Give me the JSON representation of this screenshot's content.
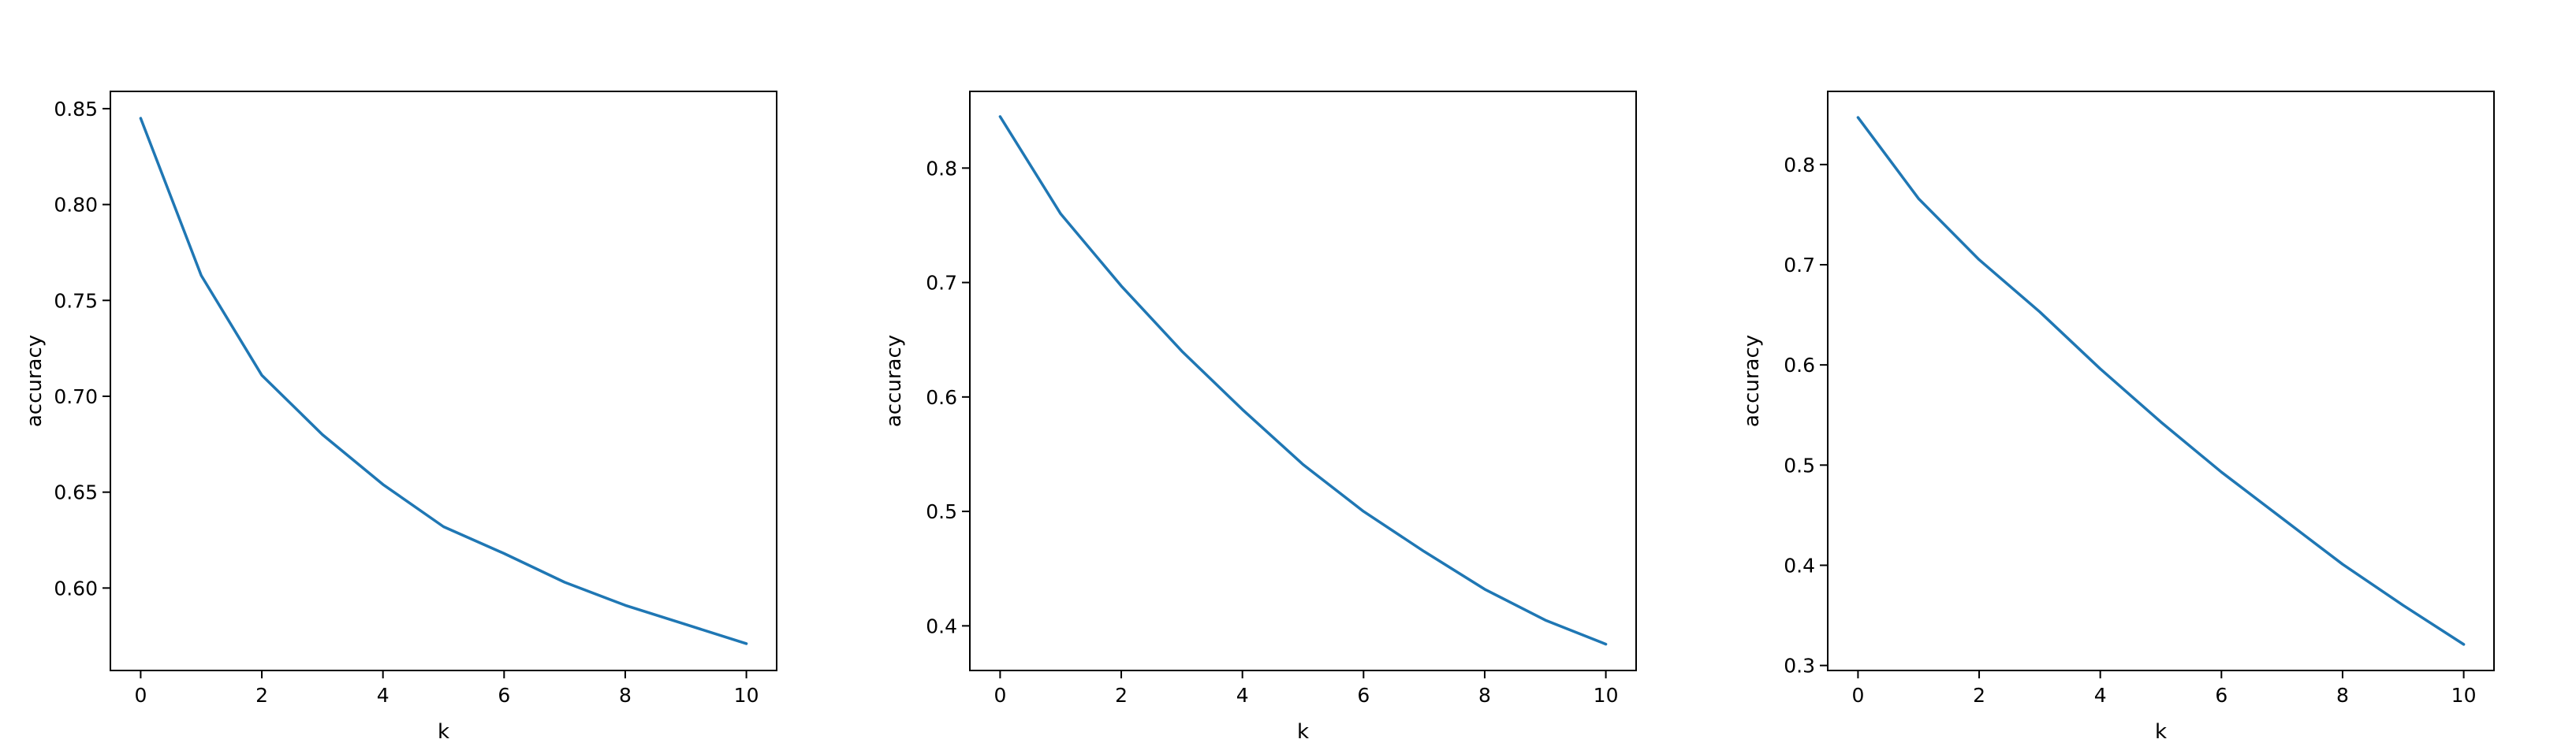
{
  "chart_data": [
    {
      "type": "line",
      "xlabel": "k",
      "ylabel": "accuracy",
      "xlim": [
        -0.5,
        10.5
      ],
      "ylim": [
        0.557,
        0.859
      ],
      "xticks": [
        0,
        2,
        4,
        6,
        8,
        10
      ],
      "xtick_labels": [
        "0",
        "2",
        "4",
        "6",
        "8",
        "10"
      ],
      "yticks": [
        0.6,
        0.65,
        0.7,
        0.75,
        0.8,
        0.85
      ],
      "ytick_labels": [
        "0.60",
        "0.65",
        "0.70",
        "0.75",
        "0.80",
        "0.85"
      ],
      "grid": false,
      "color": "#1f77b4",
      "x": [
        0,
        1,
        2,
        3,
        4,
        5,
        6,
        7,
        8,
        9,
        10
      ],
      "y": [
        0.845,
        0.763,
        0.711,
        0.68,
        0.654,
        0.632,
        0.618,
        0.603,
        0.591,
        0.581,
        0.571
      ]
    },
    {
      "type": "line",
      "xlabel": "k",
      "ylabel": "accuracy",
      "xlim": [
        -0.5,
        10.5
      ],
      "ylim": [
        0.361,
        0.867
      ],
      "xticks": [
        0,
        2,
        4,
        6,
        8,
        10
      ],
      "xtick_labels": [
        "0",
        "2",
        "4",
        "6",
        "8",
        "10"
      ],
      "yticks": [
        0.4,
        0.5,
        0.6,
        0.7,
        0.8
      ],
      "ytick_labels": [
        "0.4",
        "0.5",
        "0.6",
        "0.7",
        "0.8"
      ],
      "grid": false,
      "color": "#1f77b4",
      "x": [
        0,
        1,
        2,
        3,
        4,
        5,
        6,
        7,
        8,
        9,
        10
      ],
      "y": [
        0.845,
        0.76,
        0.697,
        0.64,
        0.589,
        0.541,
        0.5,
        0.465,
        0.432,
        0.405,
        0.384
      ]
    },
    {
      "type": "line",
      "xlabel": "k",
      "ylabel": "accuracy",
      "xlim": [
        -0.5,
        10.5
      ],
      "ylim": [
        0.295,
        0.873
      ],
      "xticks": [
        0,
        2,
        4,
        6,
        8,
        10
      ],
      "xtick_labels": [
        "0",
        "2",
        "4",
        "6",
        "8",
        "10"
      ],
      "yticks": [
        0.3,
        0.4,
        0.5,
        0.6,
        0.7,
        0.8
      ],
      "ytick_labels": [
        "0.3",
        "0.4",
        "0.5",
        "0.6",
        "0.7",
        "0.8"
      ],
      "grid": false,
      "color": "#1f77b4",
      "x": [
        0,
        1,
        2,
        3,
        4,
        5,
        6,
        7,
        8,
        9,
        10
      ],
      "y": [
        0.847,
        0.766,
        0.705,
        0.653,
        0.596,
        0.543,
        0.493,
        0.447,
        0.401,
        0.36,
        0.321
      ]
    }
  ]
}
